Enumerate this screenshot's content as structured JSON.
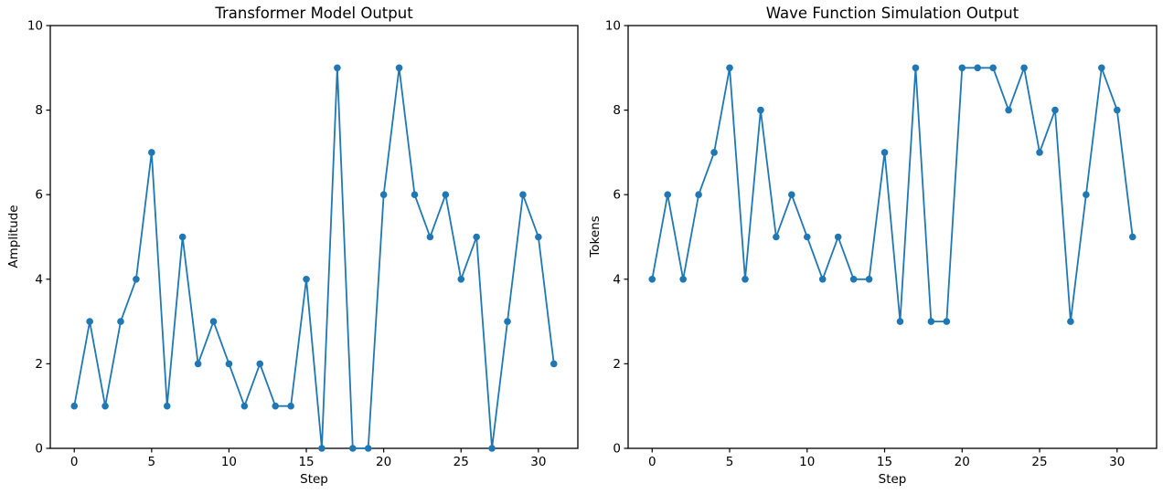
{
  "figure": {
    "background_color": "#ffffff",
    "n_subplots": 2
  },
  "chart_data": [
    {
      "type": "line",
      "title": "Transformer Model Output",
      "xlabel": "Step",
      "ylabel": "Amplitude",
      "x": [
        0,
        1,
        2,
        3,
        4,
        5,
        6,
        7,
        8,
        9,
        10,
        11,
        12,
        13,
        14,
        15,
        16,
        17,
        18,
        19,
        20,
        21,
        22,
        23,
        24,
        25,
        26,
        27,
        28,
        29,
        30,
        31
      ],
      "values": [
        1,
        3,
        1,
        3,
        4,
        7,
        1,
        5,
        2,
        3,
        2,
        1,
        2,
        1,
        1,
        4,
        0,
        9,
        0,
        0,
        6,
        9,
        6,
        5,
        6,
        4,
        5,
        0,
        3,
        6,
        5,
        2
      ],
      "xlim": [
        -1.55,
        32.55
      ],
      "ylim": [
        0,
        10
      ],
      "xticks": [
        0,
        5,
        10,
        15,
        20,
        25,
        30
      ],
      "yticks": [
        0,
        2,
        4,
        6,
        8,
        10
      ],
      "line_color": "#1f77b4",
      "marker": "circle",
      "grid": false,
      "legend": "none"
    },
    {
      "type": "line",
      "title": "Wave Function Simulation Output",
      "xlabel": "Step",
      "ylabel": "Tokens",
      "x": [
        0,
        1,
        2,
        3,
        4,
        5,
        6,
        7,
        8,
        9,
        10,
        11,
        12,
        13,
        14,
        15,
        16,
        17,
        18,
        19,
        20,
        21,
        22,
        23,
        24,
        25,
        26,
        27,
        28,
        29,
        30,
        31
      ],
      "values": [
        4,
        6,
        4,
        6,
        7,
        9,
        4,
        8,
        5,
        6,
        5,
        4,
        5,
        4,
        4,
        7,
        3,
        9,
        3,
        3,
        9,
        9,
        9,
        8,
        9,
        7,
        8,
        3,
        6,
        9,
        8,
        5
      ],
      "xlim": [
        -1.55,
        32.55
      ],
      "ylim": [
        0,
        10
      ],
      "xticks": [
        0,
        5,
        10,
        15,
        20,
        25,
        30
      ],
      "yticks": [
        0,
        2,
        4,
        6,
        8,
        10
      ],
      "line_color": "#1f77b4",
      "marker": "circle",
      "grid": false,
      "legend": "none"
    }
  ]
}
